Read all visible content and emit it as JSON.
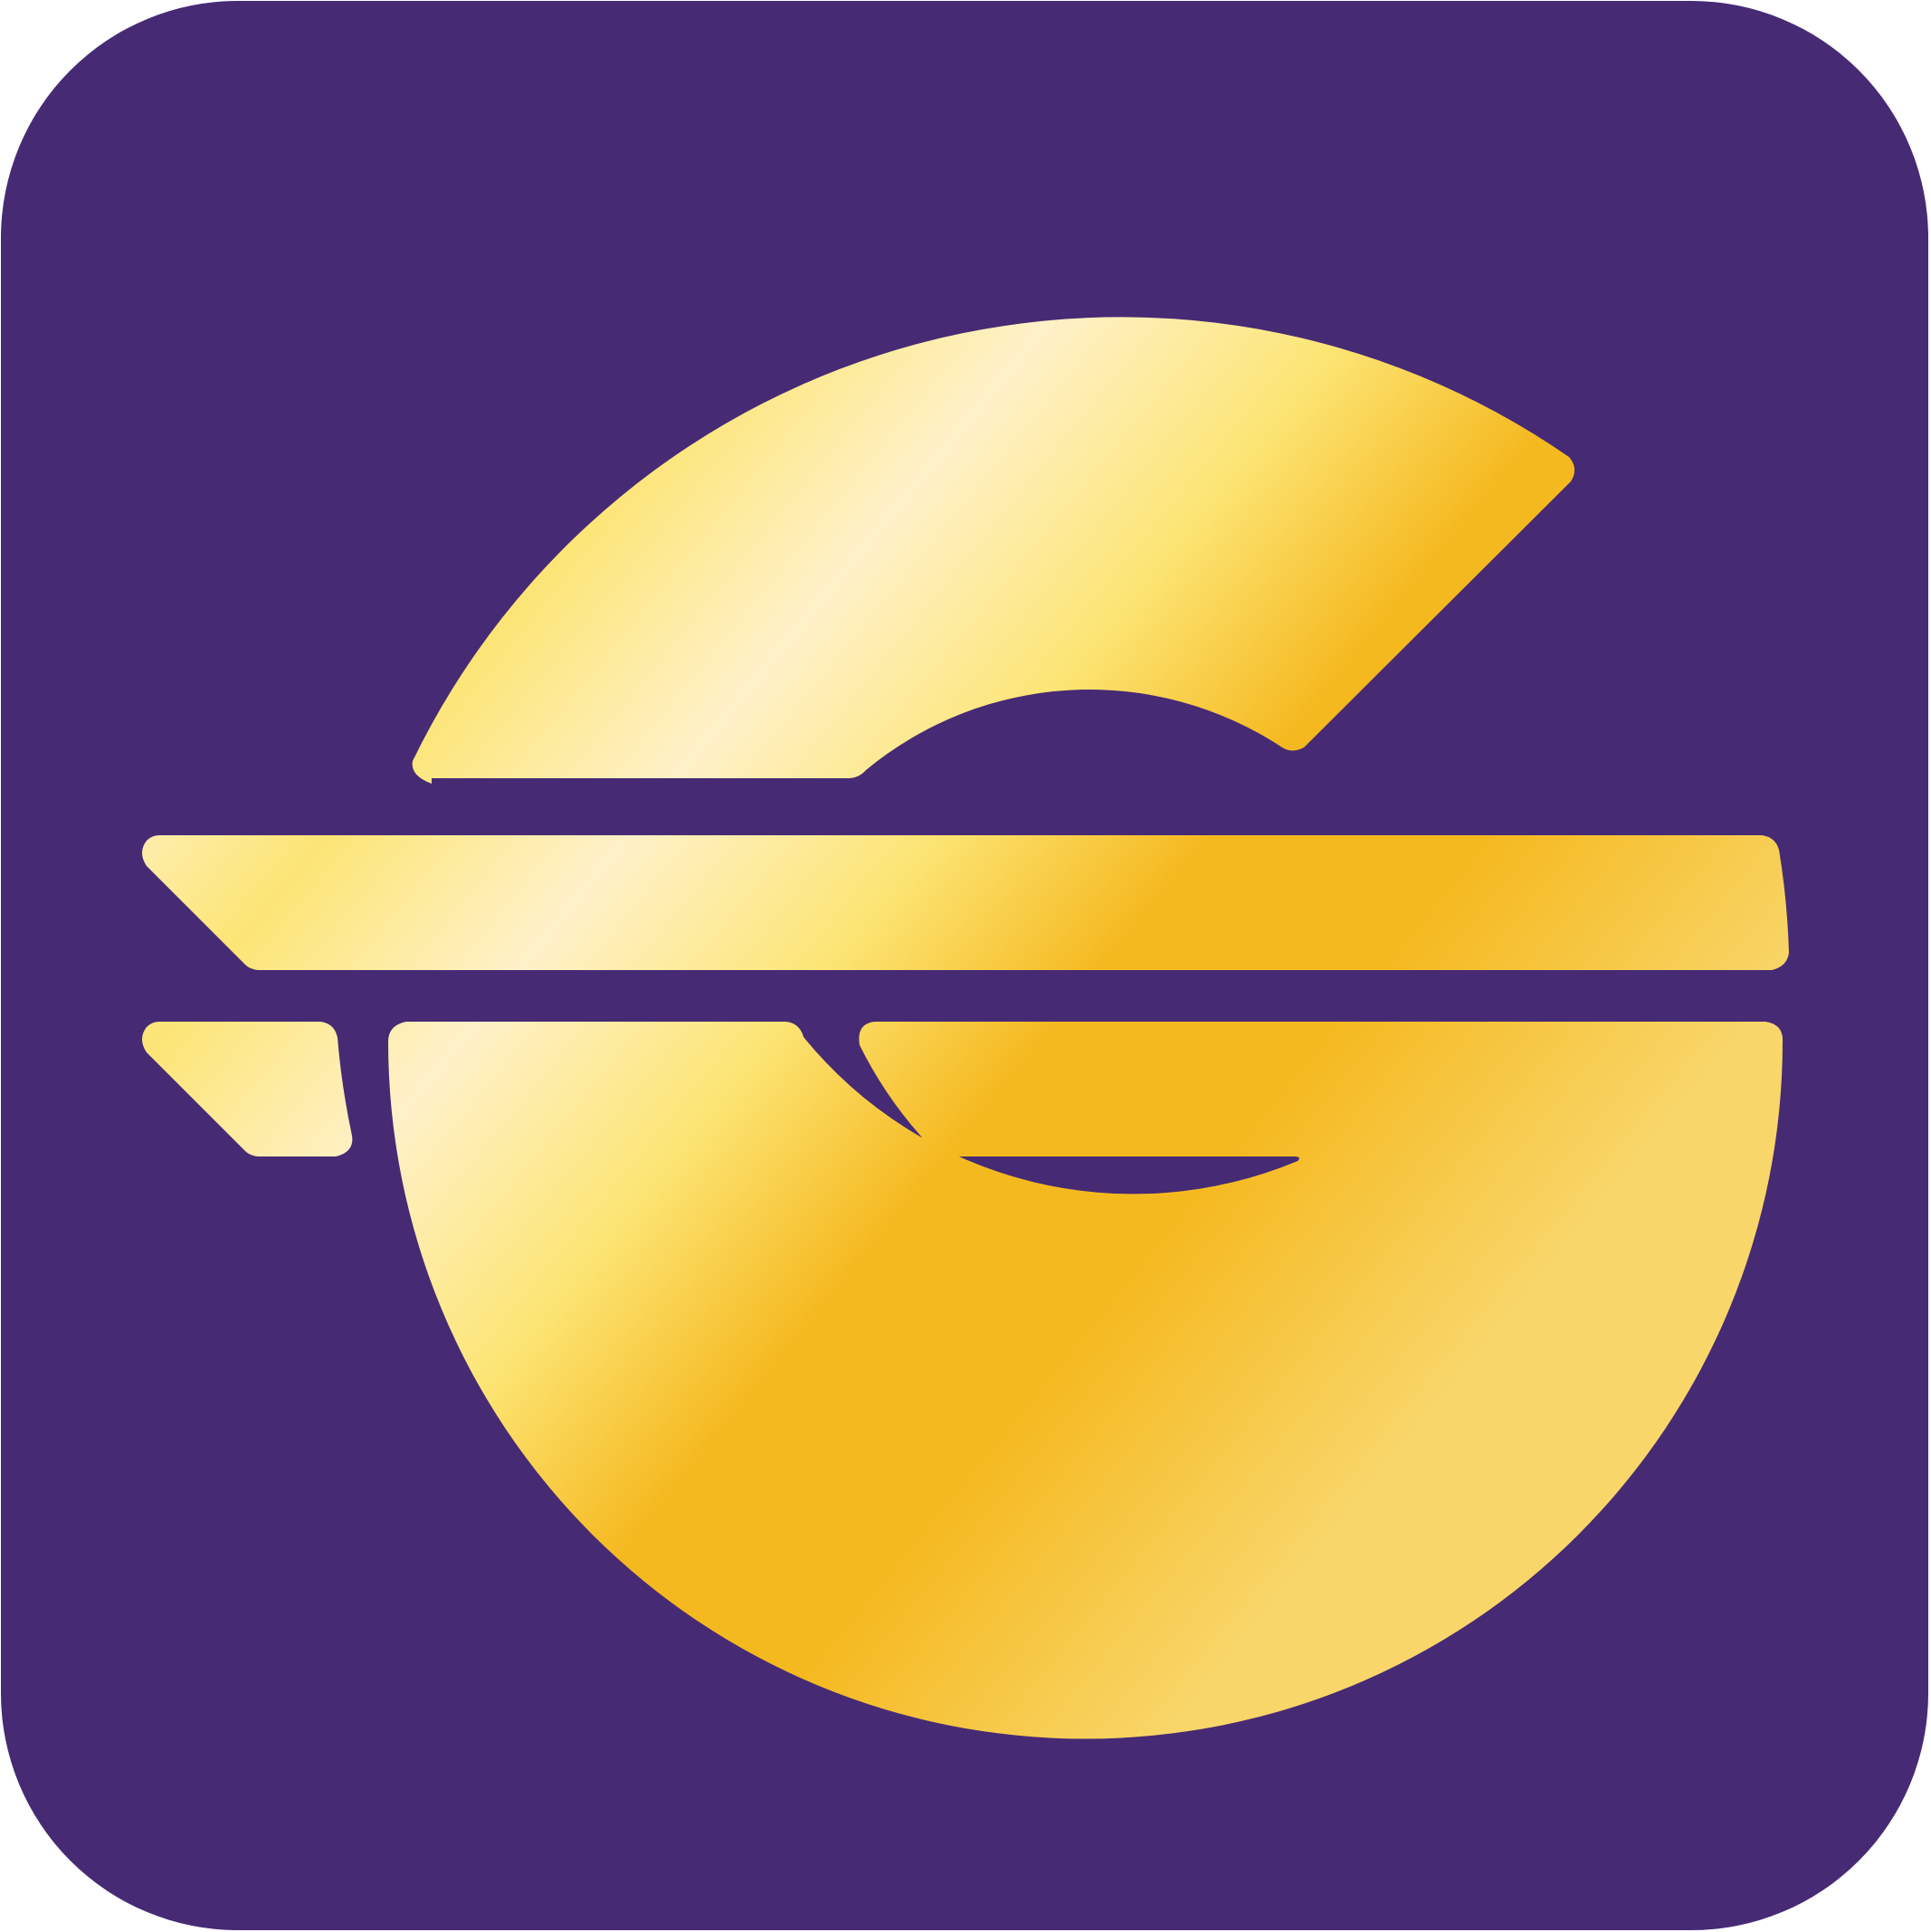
{
  "logo": {
    "icon": "stylized-g-logo-icon",
    "colors": {
      "background": "#462A74",
      "gold_light": "#FEF1C9",
      "gold_mid": "#FCE575",
      "gold_deep": "#F5B920",
      "gold_soft": "#F8D66A"
    }
  }
}
